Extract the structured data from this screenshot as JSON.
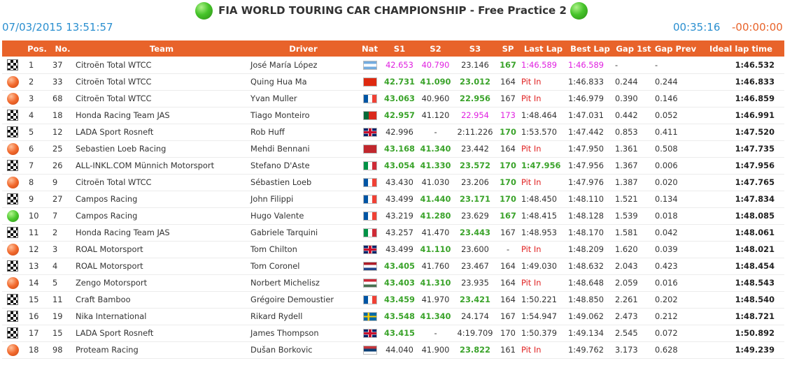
{
  "header": {
    "title": "FIA WORLD TOURING CAR CHAMPIONSHIP - Free Practice 2",
    "datetime": "07/03/2015 13:51:57",
    "session_clock": "00:35:16",
    "time_delta": "-00:00:00"
  },
  "colors": {
    "accent": "#e8632a",
    "info_blue": "#2a8fd0",
    "session_best": "#e020e0",
    "personal_best": "#3aa32a",
    "pit": "#e02020"
  },
  "columns": [
    "Pos.",
    "No.",
    "Team",
    "Driver",
    "Nat",
    "S1",
    "S2",
    "S3",
    "SP",
    "Last Lap",
    "Best Lap",
    "Gap 1st",
    "Gap Prev",
    "Ideal lap time"
  ],
  "rows": [
    {
      "status": "finished",
      "pos": "1",
      "no": "37",
      "team": "Citroën Total WTCC",
      "driver": "José María López",
      "nat": "ARG",
      "s1": "42.653",
      "s1s": "best",
      "s2": "40.790",
      "s2s": "best",
      "s3": "23.146",
      "s3s": "",
      "sp": "167",
      "sps": "pers",
      "last": "1:46.589",
      "lasts": "best",
      "best": "1:46.589",
      "bests": "best",
      "gap1": "-",
      "gapp": "-",
      "ideal": "1:46.532"
    },
    {
      "status": "pit",
      "pos": "2",
      "no": "33",
      "team": "Citroën Total WTCC",
      "driver": "Quing Hua Ma",
      "nat": "CHN",
      "s1": "42.731",
      "s1s": "pers",
      "s2": "41.090",
      "s2s": "pers",
      "s3": "23.012",
      "s3s": "pers",
      "sp": "164",
      "sps": "",
      "last": "Pit In",
      "lasts": "pit",
      "best": "1:46.833",
      "bests": "",
      "gap1": "0.244",
      "gapp": "0.244",
      "ideal": "1:46.833"
    },
    {
      "status": "pit",
      "pos": "3",
      "no": "68",
      "team": "Citroën Total WTCC",
      "driver": "Yvan Muller",
      "nat": "FRA",
      "s1": "43.063",
      "s1s": "pers",
      "s2": "40.960",
      "s2s": "",
      "s3": "22.956",
      "s3s": "pers",
      "sp": "167",
      "sps": "",
      "last": "Pit In",
      "lasts": "pit",
      "best": "1:46.979",
      "bests": "",
      "gap1": "0.390",
      "gapp": "0.146",
      "ideal": "1:46.859"
    },
    {
      "status": "finished",
      "pos": "4",
      "no": "18",
      "team": "Honda Racing Team JAS",
      "driver": "Tiago Monteiro",
      "nat": "POR",
      "s1": "42.957",
      "s1s": "pers",
      "s2": "41.120",
      "s2s": "",
      "s3": "22.954",
      "s3s": "best",
      "sp": "173",
      "sps": "best",
      "last": "1:48.464",
      "lasts": "",
      "best": "1:47.031",
      "bests": "",
      "gap1": "0.442",
      "gapp": "0.052",
      "ideal": "1:46.991"
    },
    {
      "status": "finished",
      "pos": "5",
      "no": "12",
      "team": "LADA Sport Rosneft",
      "driver": "Rob Huff",
      "nat": "GBR",
      "s1": "42.996",
      "s1s": "",
      "s2": "-",
      "s2s": "",
      "s3": "2:11.226",
      "s3s": "",
      "sp": "170",
      "sps": "pers",
      "last": "1:53.570",
      "lasts": "",
      "best": "1:47.442",
      "bests": "",
      "gap1": "0.853",
      "gapp": "0.411",
      "ideal": "1:47.520"
    },
    {
      "status": "pit",
      "pos": "6",
      "no": "25",
      "team": "Sebastien Loeb Racing",
      "driver": "Mehdi Bennani",
      "nat": "MAR",
      "s1": "43.168",
      "s1s": "pers",
      "s2": "41.340",
      "s2s": "pers",
      "s3": "23.442",
      "s3s": "",
      "sp": "164",
      "sps": "",
      "last": "Pit In",
      "lasts": "pit",
      "best": "1:47.950",
      "bests": "",
      "gap1": "1.361",
      "gapp": "0.508",
      "ideal": "1:47.735"
    },
    {
      "status": "finished",
      "pos": "7",
      "no": "26",
      "team": "ALL-INKL.COM Münnich Motorsport",
      "driver": "Stefano D'Aste",
      "nat": "ITA",
      "s1": "43.054",
      "s1s": "pers",
      "s2": "41.330",
      "s2s": "pers",
      "s3": "23.572",
      "s3s": "pers",
      "sp": "170",
      "sps": "pers",
      "last": "1:47.956",
      "lasts": "pers",
      "best": "1:47.956",
      "bests": "",
      "gap1": "1.367",
      "gapp": "0.006",
      "ideal": "1:47.956"
    },
    {
      "status": "pit",
      "pos": "8",
      "no": "9",
      "team": "Citroën Total WTCC",
      "driver": "Sébastien Loeb",
      "nat": "FRA",
      "s1": "43.430",
      "s1s": "",
      "s2": "41.030",
      "s2s": "",
      "s3": "23.206",
      "s3s": "",
      "sp": "170",
      "sps": "pers",
      "last": "Pit In",
      "lasts": "pit",
      "best": "1:47.976",
      "bests": "",
      "gap1": "1.387",
      "gapp": "0.020",
      "ideal": "1:47.765"
    },
    {
      "status": "finished",
      "pos": "9",
      "no": "27",
      "team": "Campos Racing",
      "driver": "John Filippi",
      "nat": "FRA",
      "s1": "43.499",
      "s1s": "",
      "s2": "41.440",
      "s2s": "pers",
      "s3": "23.171",
      "s3s": "pers",
      "sp": "170",
      "sps": "pers",
      "last": "1:48.450",
      "lasts": "",
      "best": "1:48.110",
      "bests": "",
      "gap1": "1.521",
      "gapp": "0.134",
      "ideal": "1:47.834"
    },
    {
      "status": "track",
      "pos": "10",
      "no": "7",
      "team": "Campos Racing",
      "driver": "Hugo Valente",
      "nat": "FRA",
      "s1": "43.219",
      "s1s": "",
      "s2": "41.280",
      "s2s": "pers",
      "s3": "23.629",
      "s3s": "",
      "sp": "167",
      "sps": "pers",
      "last": "1:48.415",
      "lasts": "",
      "best": "1:48.128",
      "bests": "",
      "gap1": "1.539",
      "gapp": "0.018",
      "ideal": "1:48.085"
    },
    {
      "status": "finished",
      "pos": "11",
      "no": "2",
      "team": "Honda Racing Team JAS",
      "driver": "Gabriele Tarquini",
      "nat": "ITA",
      "s1": "43.257",
      "s1s": "",
      "s2": "41.470",
      "s2s": "",
      "s3": "23.443",
      "s3s": "pers",
      "sp": "167",
      "sps": "",
      "last": "1:48.953",
      "lasts": "",
      "best": "1:48.170",
      "bests": "",
      "gap1": "1.581",
      "gapp": "0.042",
      "ideal": "1:48.061"
    },
    {
      "status": "pit",
      "pos": "12",
      "no": "3",
      "team": "ROAL Motorsport",
      "driver": "Tom Chilton",
      "nat": "GBR",
      "s1": "43.499",
      "s1s": "",
      "s2": "41.110",
      "s2s": "pers",
      "s3": "23.600",
      "s3s": "",
      "sp": "-",
      "sps": "",
      "last": "Pit In",
      "lasts": "pit",
      "best": "1:48.209",
      "bests": "",
      "gap1": "1.620",
      "gapp": "0.039",
      "ideal": "1:48.021"
    },
    {
      "status": "finished",
      "pos": "13",
      "no": "4",
      "team": "ROAL Motorsport",
      "driver": "Tom Coronel",
      "nat": "NED",
      "s1": "43.405",
      "s1s": "pers",
      "s2": "41.760",
      "s2s": "",
      "s3": "23.467",
      "s3s": "",
      "sp": "164",
      "sps": "",
      "last": "1:49.030",
      "lasts": "",
      "best": "1:48.632",
      "bests": "",
      "gap1": "2.043",
      "gapp": "0.423",
      "ideal": "1:48.454"
    },
    {
      "status": "pit",
      "pos": "14",
      "no": "5",
      "team": "Zengo Motorsport",
      "driver": "Norbert Michelisz",
      "nat": "HUN",
      "s1": "43.403",
      "s1s": "pers",
      "s2": "41.310",
      "s2s": "pers",
      "s3": "23.935",
      "s3s": "",
      "sp": "164",
      "sps": "",
      "last": "Pit In",
      "lasts": "pit",
      "best": "1:48.648",
      "bests": "",
      "gap1": "2.059",
      "gapp": "0.016",
      "ideal": "1:48.543"
    },
    {
      "status": "finished",
      "pos": "15",
      "no": "11",
      "team": "Craft Bamboo",
      "driver": "Grégoire Demoustier",
      "nat": "FRA",
      "s1": "43.459",
      "s1s": "pers",
      "s2": "41.970",
      "s2s": "",
      "s3": "23.421",
      "s3s": "pers",
      "sp": "164",
      "sps": "",
      "last": "1:50.221",
      "lasts": "",
      "best": "1:48.850",
      "bests": "",
      "gap1": "2.261",
      "gapp": "0.202",
      "ideal": "1:48.540"
    },
    {
      "status": "finished",
      "pos": "16",
      "no": "19",
      "team": "Nika International",
      "driver": "Rikard Rydell",
      "nat": "SWE",
      "s1": "43.548",
      "s1s": "pers",
      "s2": "41.340",
      "s2s": "pers",
      "s3": "24.174",
      "s3s": "",
      "sp": "167",
      "sps": "",
      "last": "1:54.947",
      "lasts": "",
      "best": "1:49.062",
      "bests": "",
      "gap1": "2.473",
      "gapp": "0.212",
      "ideal": "1:48.721"
    },
    {
      "status": "finished",
      "pos": "17",
      "no": "15",
      "team": "LADA Sport Rosneft",
      "driver": "James Thompson",
      "nat": "GBR",
      "s1": "43.415",
      "s1s": "pers",
      "s2": "-",
      "s2s": "",
      "s3": "4:19.709",
      "s3s": "",
      "sp": "170",
      "sps": "",
      "last": "1:50.379",
      "lasts": "",
      "best": "1:49.134",
      "bests": "",
      "gap1": "2.545",
      "gapp": "0.072",
      "ideal": "1:50.892"
    },
    {
      "status": "pit",
      "pos": "18",
      "no": "98",
      "team": "Proteam Racing",
      "driver": "Dušan Borkovic",
      "nat": "SRB",
      "s1": "44.040",
      "s1s": "",
      "s2": "41.900",
      "s2s": "",
      "s3": "23.822",
      "s3s": "pers",
      "sp": "161",
      "sps": "",
      "last": "Pit In",
      "lasts": "pit",
      "best": "1:49.762",
      "bests": "",
      "gap1": "3.173",
      "gapp": "0.628",
      "ideal": "1:49.239"
    }
  ]
}
